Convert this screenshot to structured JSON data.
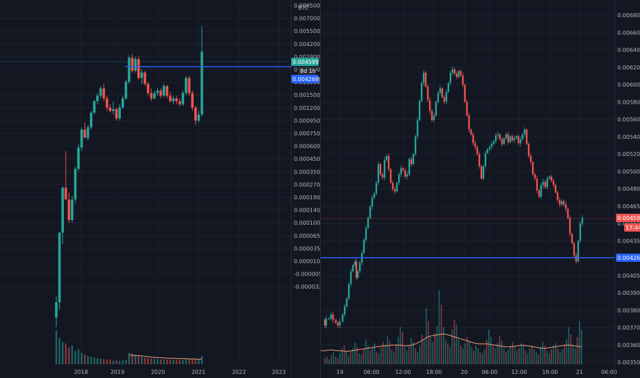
{
  "colors": {
    "background": "#131722",
    "grid": "#1e222d",
    "up": "#26a69a",
    "down": "#ef5350",
    "support_line": "#2962ff",
    "ma_line": "#f0a07a",
    "badge_green": "#26a69a",
    "badge_red": "#ef5350",
    "badge_blue": "#2962ff",
    "badge_dark": "#2a2e39"
  },
  "chart_data": [
    {
      "type": "candlestick",
      "panel": "left",
      "currency": "BTC",
      "log_scale": true,
      "grid": true,
      "x_ticks": [
        "2018",
        "2019",
        "2020",
        "2021",
        "2022",
        "2023"
      ],
      "y_ticks": [
        "0.0085000",
        "0.0070000",
        "0.0055000",
        "0.0042000",
        "0.0029000",
        "0.0023000",
        "0.0019000",
        "0.0015000",
        "0.0012000",
        "0.0009500",
        "0.0007500",
        "0.0006000",
        "0.0004500",
        "0.0003500",
        "0.0002700",
        "0.0001900",
        "0.0001400",
        "0.0001000",
        "0.0000650",
        "0.0000350",
        "0.0000100",
        "-0.0000050",
        "-0.0000320"
      ],
      "horizontal_line": 0.00426,
      "last_price": "0.0045997",
      "countdown": "8d 1h",
      "line_price": "0.0042699",
      "candles": [
        [
          3e-05,
          4.5e-05,
          2.5e-05,
          4e-05
        ],
        [
          4e-05,
          9e-05,
          3.5e-05,
          0.00015
        ],
        [
          0.00015,
          0.00036,
          0.00012,
          0.00035
        ],
        [
          0.00035,
          0.0007,
          0.00033,
          0.00028
        ],
        [
          0.00028,
          0.00032,
          0.00018,
          0.00019
        ],
        [
          0.00019,
          0.0003,
          0.00018,
          0.00028
        ],
        [
          0.00028,
          0.00052,
          0.00026,
          0.0005
        ],
        [
          0.0005,
          0.0008,
          0.00048,
          0.00075
        ],
        [
          0.00075,
          0.0011,
          0.0007,
          0.00105
        ],
        [
          0.00105,
          0.0012,
          0.00095,
          0.0009
        ],
        [
          0.0009,
          0.00115,
          0.00085,
          0.0011
        ],
        [
          0.0011,
          0.0015,
          0.00105,
          0.00145
        ],
        [
          0.00145,
          0.00185,
          0.0014,
          0.0018
        ],
        [
          0.0018,
          0.0021,
          0.0017,
          0.002
        ],
        [
          0.002,
          0.0024,
          0.0019,
          0.0023
        ],
        [
          0.0023,
          0.0025,
          0.0018,
          0.0019
        ],
        [
          0.0019,
          0.002,
          0.0015,
          0.0016
        ],
        [
          0.0016,
          0.0017,
          0.00145,
          0.0015
        ],
        [
          0.0015,
          0.0018,
          0.0014,
          0.00155
        ],
        [
          0.00155,
          0.0016,
          0.00125,
          0.0013
        ],
        [
          0.0013,
          0.0017,
          0.00125,
          0.0016
        ],
        [
          0.0016,
          0.002,
          0.00155,
          0.0019
        ],
        [
          0.0019,
          0.0027,
          0.00185,
          0.0026
        ],
        [
          0.0026,
          0.0043,
          0.0025,
          0.0041
        ],
        [
          0.0041,
          0.0044,
          0.0031,
          0.0032
        ],
        [
          0.0032,
          0.0042,
          0.0031,
          0.004
        ],
        [
          0.004,
          0.0042,
          0.0027,
          0.0028
        ],
        [
          0.0028,
          0.0033,
          0.0025,
          0.0031
        ],
        [
          0.0031,
          0.0032,
          0.0024,
          0.0025
        ],
        [
          0.0025,
          0.0026,
          0.002,
          0.0021
        ],
        [
          0.0021,
          0.0023,
          0.0018,
          0.0019
        ],
        [
          0.0019,
          0.0022,
          0.00185,
          0.0021
        ],
        [
          0.0021,
          0.0023,
          0.002,
          0.0022
        ],
        [
          0.0022,
          0.0023,
          0.0019,
          0.002
        ],
        [
          0.002,
          0.0025,
          0.00195,
          0.0024
        ],
        [
          0.0024,
          0.00245,
          0.0019,
          0.002
        ],
        [
          0.002,
          0.00215,
          0.00175,
          0.0018
        ],
        [
          0.0018,
          0.002,
          0.0017,
          0.0019
        ],
        [
          0.0019,
          0.002,
          0.0017,
          0.0018
        ],
        [
          0.0018,
          0.0019,
          0.00165,
          0.0017
        ],
        [
          0.0017,
          0.0022,
          0.00165,
          0.0021
        ],
        [
          0.0021,
          0.0029,
          0.002,
          0.0028
        ],
        [
          0.0028,
          0.0029,
          0.002,
          0.0021
        ],
        [
          0.0021,
          0.0022,
          0.0015,
          0.0016
        ],
        [
          0.0016,
          0.00165,
          0.00115,
          0.00125
        ],
        [
          0.00125,
          0.0015,
          0.0012,
          0.0014
        ],
        [
          0.0014,
          0.0075,
          0.00135,
          0.0046
        ]
      ],
      "volumes": [
        90,
        70,
        60,
        55,
        45,
        50,
        35,
        40,
        30,
        25,
        22,
        20,
        18,
        16,
        15,
        14,
        12,
        12,
        10,
        10,
        9,
        10,
        12,
        30,
        28,
        25,
        22,
        20,
        18,
        16,
        15,
        14,
        14,
        13,
        13,
        12,
        12,
        12,
        11,
        11,
        12,
        14,
        13,
        12,
        14,
        12,
        22
      ],
      "ma": [
        0,
        0,
        0,
        0,
        0,
        0,
        0,
        0,
        0,
        0,
        0,
        0,
        0,
        0,
        0,
        0,
        0,
        0,
        0,
        0,
        0,
        0,
        0,
        24,
        24,
        23,
        23,
        22,
        21,
        20,
        19,
        18,
        18,
        17,
        17,
        16,
        16,
        16,
        15,
        15,
        15,
        15,
        14,
        14,
        14,
        13,
        14
      ]
    },
    {
      "type": "candlestick",
      "panel": "right",
      "log_scale": true,
      "grid": true,
      "x_ticks": [
        "19",
        "06:00",
        "12:00",
        "18:00",
        "20",
        "06:00",
        "12:00",
        "18:00",
        "21",
        "06:00"
      ],
      "y_ticks": [
        "0.0068000",
        "0.0066000",
        "0.0064000",
        "0.0062000",
        "0.0060000",
        "0.0058000",
        "0.0056000",
        "0.0054000",
        "0.0052000",
        "0.0050000",
        "0.0048000",
        "0.0046500",
        "0.0045000",
        "0.0043500",
        "0.0042000",
        "0.0040500",
        "0.0039000",
        "0.0038000",
        "0.0037000",
        "0.0036000",
        "0.0035050"
      ],
      "horizontal_line": 0.00426,
      "last_price": "0.0045967",
      "countdown": "17:44",
      "line_price": "0.0042699",
      "close_path": [
        [
          0,
          0.00378
        ],
        [
          4,
          0.00374
        ],
        [
          6,
          0.00379
        ],
        [
          10,
          0.00379
        ],
        [
          13,
          0.00382
        ],
        [
          16,
          0.00378
        ],
        [
          20,
          0.00376
        ],
        [
          23,
          0.00374
        ],
        [
          26,
          0.00377
        ],
        [
          30,
          0.00382
        ],
        [
          33,
          0.00388
        ],
        [
          36,
          0.00394
        ],
        [
          39,
          0.00405
        ],
        [
          42,
          0.00415
        ],
        [
          45,
          0.0042
        ],
        [
          48,
          0.00423
        ],
        [
          50,
          0.0041
        ],
        [
          52,
          0.00415
        ],
        [
          55,
          0.00422
        ],
        [
          58,
          0.0043
        ],
        [
          61,
          0.00441
        ],
        [
          64,
          0.00451
        ],
        [
          67,
          0.0046
        ],
        [
          70,
          0.0047
        ],
        [
          73,
          0.00478
        ],
        [
          76,
          0.00482
        ],
        [
          79,
          0.00492
        ],
        [
          82,
          0.0051
        ],
        [
          85,
          0.005
        ],
        [
          88,
          0.00497
        ],
        [
          91,
          0.00514
        ],
        [
          94,
          0.00518
        ],
        [
          97,
          0.00505
        ],
        [
          100,
          0.00492
        ],
        [
          103,
          0.00486
        ],
        [
          106,
          0.00484
        ],
        [
          109,
          0.00492
        ],
        [
          112,
          0.005
        ],
        [
          115,
          0.00506
        ],
        [
          118,
          0.00504
        ],
        [
          121,
          0.00498
        ],
        [
          124,
          0.005
        ],
        [
          127,
          0.00515
        ],
        [
          130,
          0.0051
        ],
        [
          133,
          0.0052
        ],
        [
          136,
          0.00538
        ],
        [
          139,
          0.00555
        ],
        [
          142,
          0.00576
        ],
        [
          145,
          0.00596
        ],
        [
          148,
          0.00608
        ],
        [
          151,
          0.00592
        ],
        [
          154,
          0.00577
        ],
        [
          157,
          0.00565
        ],
        [
          160,
          0.00555
        ],
        [
          163,
          0.0056
        ],
        [
          166,
          0.00575
        ],
        [
          169,
          0.00585
        ],
        [
          172,
          0.0059
        ],
        [
          175,
          0.0058
        ],
        [
          178,
          0.00575
        ],
        [
          181,
          0.00586
        ],
        [
          184,
          0.00596
        ],
        [
          187,
          0.00608
        ],
        [
          190,
          0.00612
        ],
        [
          193,
          0.00607
        ],
        [
          196,
          0.00603
        ],
        [
          199,
          0.0061
        ],
        [
          202,
          0.00605
        ],
        [
          205,
          0.00594
        ],
        [
          208,
          0.00575
        ],
        [
          211,
          0.0056
        ],
        [
          214,
          0.00545
        ],
        [
          217,
          0.0054
        ],
        [
          220,
          0.00531
        ],
        [
          223,
          0.00527
        ],
        [
          226,
          0.0052
        ],
        [
          229,
          0.00508
        ],
        [
          232,
          0.00496
        ],
        [
          235,
          0.00508
        ],
        [
          238,
          0.00521
        ],
        [
          241,
          0.00525
        ],
        [
          244,
          0.00527
        ],
        [
          247,
          0.0053
        ],
        [
          250,
          0.00533
        ],
        [
          253,
          0.00539
        ],
        [
          256,
          0.0054
        ],
        [
          259,
          0.00535
        ],
        [
          262,
          0.0053
        ],
        [
          265,
          0.00536
        ],
        [
          268,
          0.0054
        ],
        [
          271,
          0.00532
        ],
        [
          274,
          0.00538
        ],
        [
          277,
          0.00534
        ],
        [
          280,
          0.00536
        ],
        [
          283,
          0.00538
        ],
        [
          286,
          0.00531
        ],
        [
          289,
          0.00535
        ],
        [
          292,
          0.0054
        ],
        [
          295,
          0.00545
        ],
        [
          298,
          0.0053
        ],
        [
          301,
          0.00518
        ],
        [
          304,
          0.00512
        ],
        [
          307,
          0.005
        ],
        [
          310,
          0.00496
        ],
        [
          313,
          0.00485
        ],
        [
          316,
          0.00479
        ],
        [
          319,
          0.0049
        ],
        [
          322,
          0.00493
        ],
        [
          325,
          0.00488
        ],
        [
          328,
          0.00496
        ],
        [
          331,
          0.00498
        ],
        [
          334,
          0.00494
        ],
        [
          337,
          0.0049
        ],
        [
          340,
          0.00483
        ],
        [
          343,
          0.00476
        ],
        [
          346,
          0.00472
        ],
        [
          349,
          0.00475
        ],
        [
          352,
          0.00472
        ],
        [
          355,
          0.00468
        ],
        [
          358,
          0.0046
        ],
        [
          361,
          0.00446
        ],
        [
          364,
          0.00438
        ],
        [
          367,
          0.00428
        ],
        [
          370,
          0.00423
        ],
        [
          373,
          0.0044
        ],
        [
          376,
          0.00455
        ],
        [
          379,
          0.0046
        ]
      ],
      "volumes": [
        10,
        12,
        8,
        15,
        20,
        12,
        10,
        18,
        25,
        30,
        22,
        14,
        20,
        26,
        35,
        28,
        18,
        16,
        24,
        40,
        30,
        22,
        26,
        34,
        20,
        18,
        28,
        36,
        30,
        46,
        38,
        24,
        20,
        32,
        44,
        60,
        52,
        28,
        22,
        30,
        42,
        36,
        26,
        20,
        30,
        48,
        40,
        90,
        70,
        44,
        36,
        50,
        62,
        120,
        96,
        60,
        40,
        34,
        28,
        56,
        72,
        64,
        40,
        30,
        26,
        34,
        44,
        36,
        28,
        22,
        30,
        26,
        20,
        18,
        24,
        40,
        56,
        44,
        30,
        26,
        34,
        46,
        38,
        26,
        20,
        24,
        30,
        36,
        28,
        22,
        26,
        34,
        30,
        22,
        18,
        26,
        30,
        24,
        20,
        16,
        28,
        36,
        30,
        22,
        18,
        24,
        30,
        34,
        26,
        20,
        24,
        30,
        40,
        60,
        48,
        30,
        26,
        44,
        70,
        56
      ],
      "ma": [
        22,
        22,
        23,
        23,
        22,
        22,
        21,
        21,
        22,
        23,
        24,
        25,
        26,
        27,
        28,
        29,
        30,
        30,
        31,
        31,
        31,
        30,
        30,
        31,
        33,
        36,
        40,
        44,
        46,
        47,
        48,
        49,
        48,
        46,
        44,
        42,
        40,
        38,
        36,
        34,
        33,
        33,
        33,
        32,
        31,
        30,
        29,
        28,
        28,
        29,
        30,
        31,
        30,
        29,
        28,
        27,
        26,
        26,
        27,
        28,
        29,
        30,
        31,
        31,
        30,
        29,
        28
      ]
    }
  ]
}
